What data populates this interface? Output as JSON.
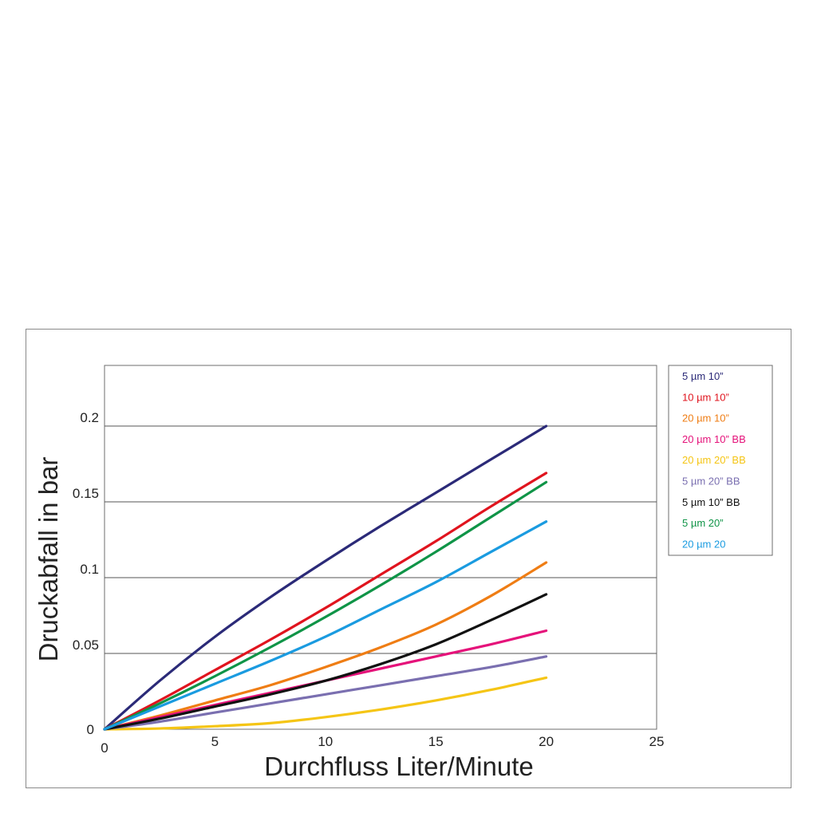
{
  "chart_data": {
    "type": "line",
    "title": "",
    "xlabel": "Durchfluss Liter/Minute",
    "ylabel": "Druckabfall in bar",
    "xlim": [
      0,
      25
    ],
    "ylim": [
      0,
      0.24
    ],
    "x_ticks": [
      "0",
      "5",
      "10",
      "15",
      "20",
      "25"
    ],
    "y_ticks": [
      "0",
      "0.05",
      "0.1",
      "0.15",
      "0.2"
    ],
    "grid": "horizontal",
    "legend_position": "right",
    "x": [
      0,
      2.5,
      5,
      7.5,
      10,
      12.5,
      15,
      17.5,
      20
    ],
    "series": [
      {
        "name": "5 µm 10”",
        "color": "#2b2a78",
        "values": [
          0,
          0.032,
          0.061,
          0.087,
          0.111,
          0.134,
          0.156,
          0.178,
          0.2
        ]
      },
      {
        "name": "10 µm 10”",
        "color": "#e0141e",
        "values": [
          0,
          0.019,
          0.039,
          0.059,
          0.08,
          0.102,
          0.124,
          0.147,
          0.169
        ]
      },
      {
        "name": "20 µm 10”",
        "color": "#ef7d14",
        "values": [
          0,
          0.009,
          0.019,
          0.029,
          0.041,
          0.054,
          0.069,
          0.088,
          0.11
        ]
      },
      {
        "name": "20 µm 10” BB",
        "color": "#e5127a",
        "values": [
          0,
          0.008,
          0.016,
          0.024,
          0.032,
          0.04,
          0.048,
          0.056,
          0.065
        ]
      },
      {
        "name": "20 µm 20” BB",
        "color": "#f5c515",
        "values": [
          0,
          0.0005,
          0.002,
          0.004,
          0.008,
          0.013,
          0.019,
          0.026,
          0.034
        ]
      },
      {
        "name": "5 µm 20” BB",
        "color": "#7a6fb0",
        "values": [
          0,
          0.005,
          0.011,
          0.017,
          0.023,
          0.029,
          0.035,
          0.041,
          0.048
        ]
      },
      {
        "name": "5 µm 10” BB",
        "color": "#111111",
        "values": [
          0,
          0.007,
          0.015,
          0.023,
          0.032,
          0.043,
          0.056,
          0.072,
          0.089
        ]
      },
      {
        "name": "5 µm 20”",
        "color": "#0f9447",
        "values": [
          0,
          0.017,
          0.035,
          0.054,
          0.074,
          0.095,
          0.117,
          0.14,
          0.163
        ]
      },
      {
        "name": "20 µm 20",
        "color": "#1a9be0",
        "values": [
          0,
          0.015,
          0.03,
          0.045,
          0.061,
          0.079,
          0.097,
          0.117,
          0.137
        ]
      }
    ]
  }
}
